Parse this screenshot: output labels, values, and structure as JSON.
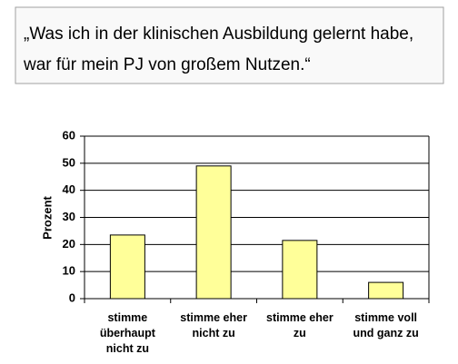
{
  "chart_data": {
    "type": "bar",
    "title": [
      "„Was ich in der klinischen Ausbildung gelernt habe,",
      "war für mein PJ von großem Nutzen.“"
    ],
    "y_label": "Prozent",
    "categories": [
      "stimme\nüberhaupt\nnicht zu",
      "stimme eher\nnicht zu",
      "stimme eher\nzu",
      "stimme voll\nund ganz zu"
    ],
    "values": [
      23.5,
      49,
      21.5,
      6
    ],
    "color": "#ffff99",
    "ylim": [
      0,
      60
    ],
    "yticks": [
      0,
      10,
      20,
      30,
      40,
      50,
      60
    ],
    "grid": true
  }
}
